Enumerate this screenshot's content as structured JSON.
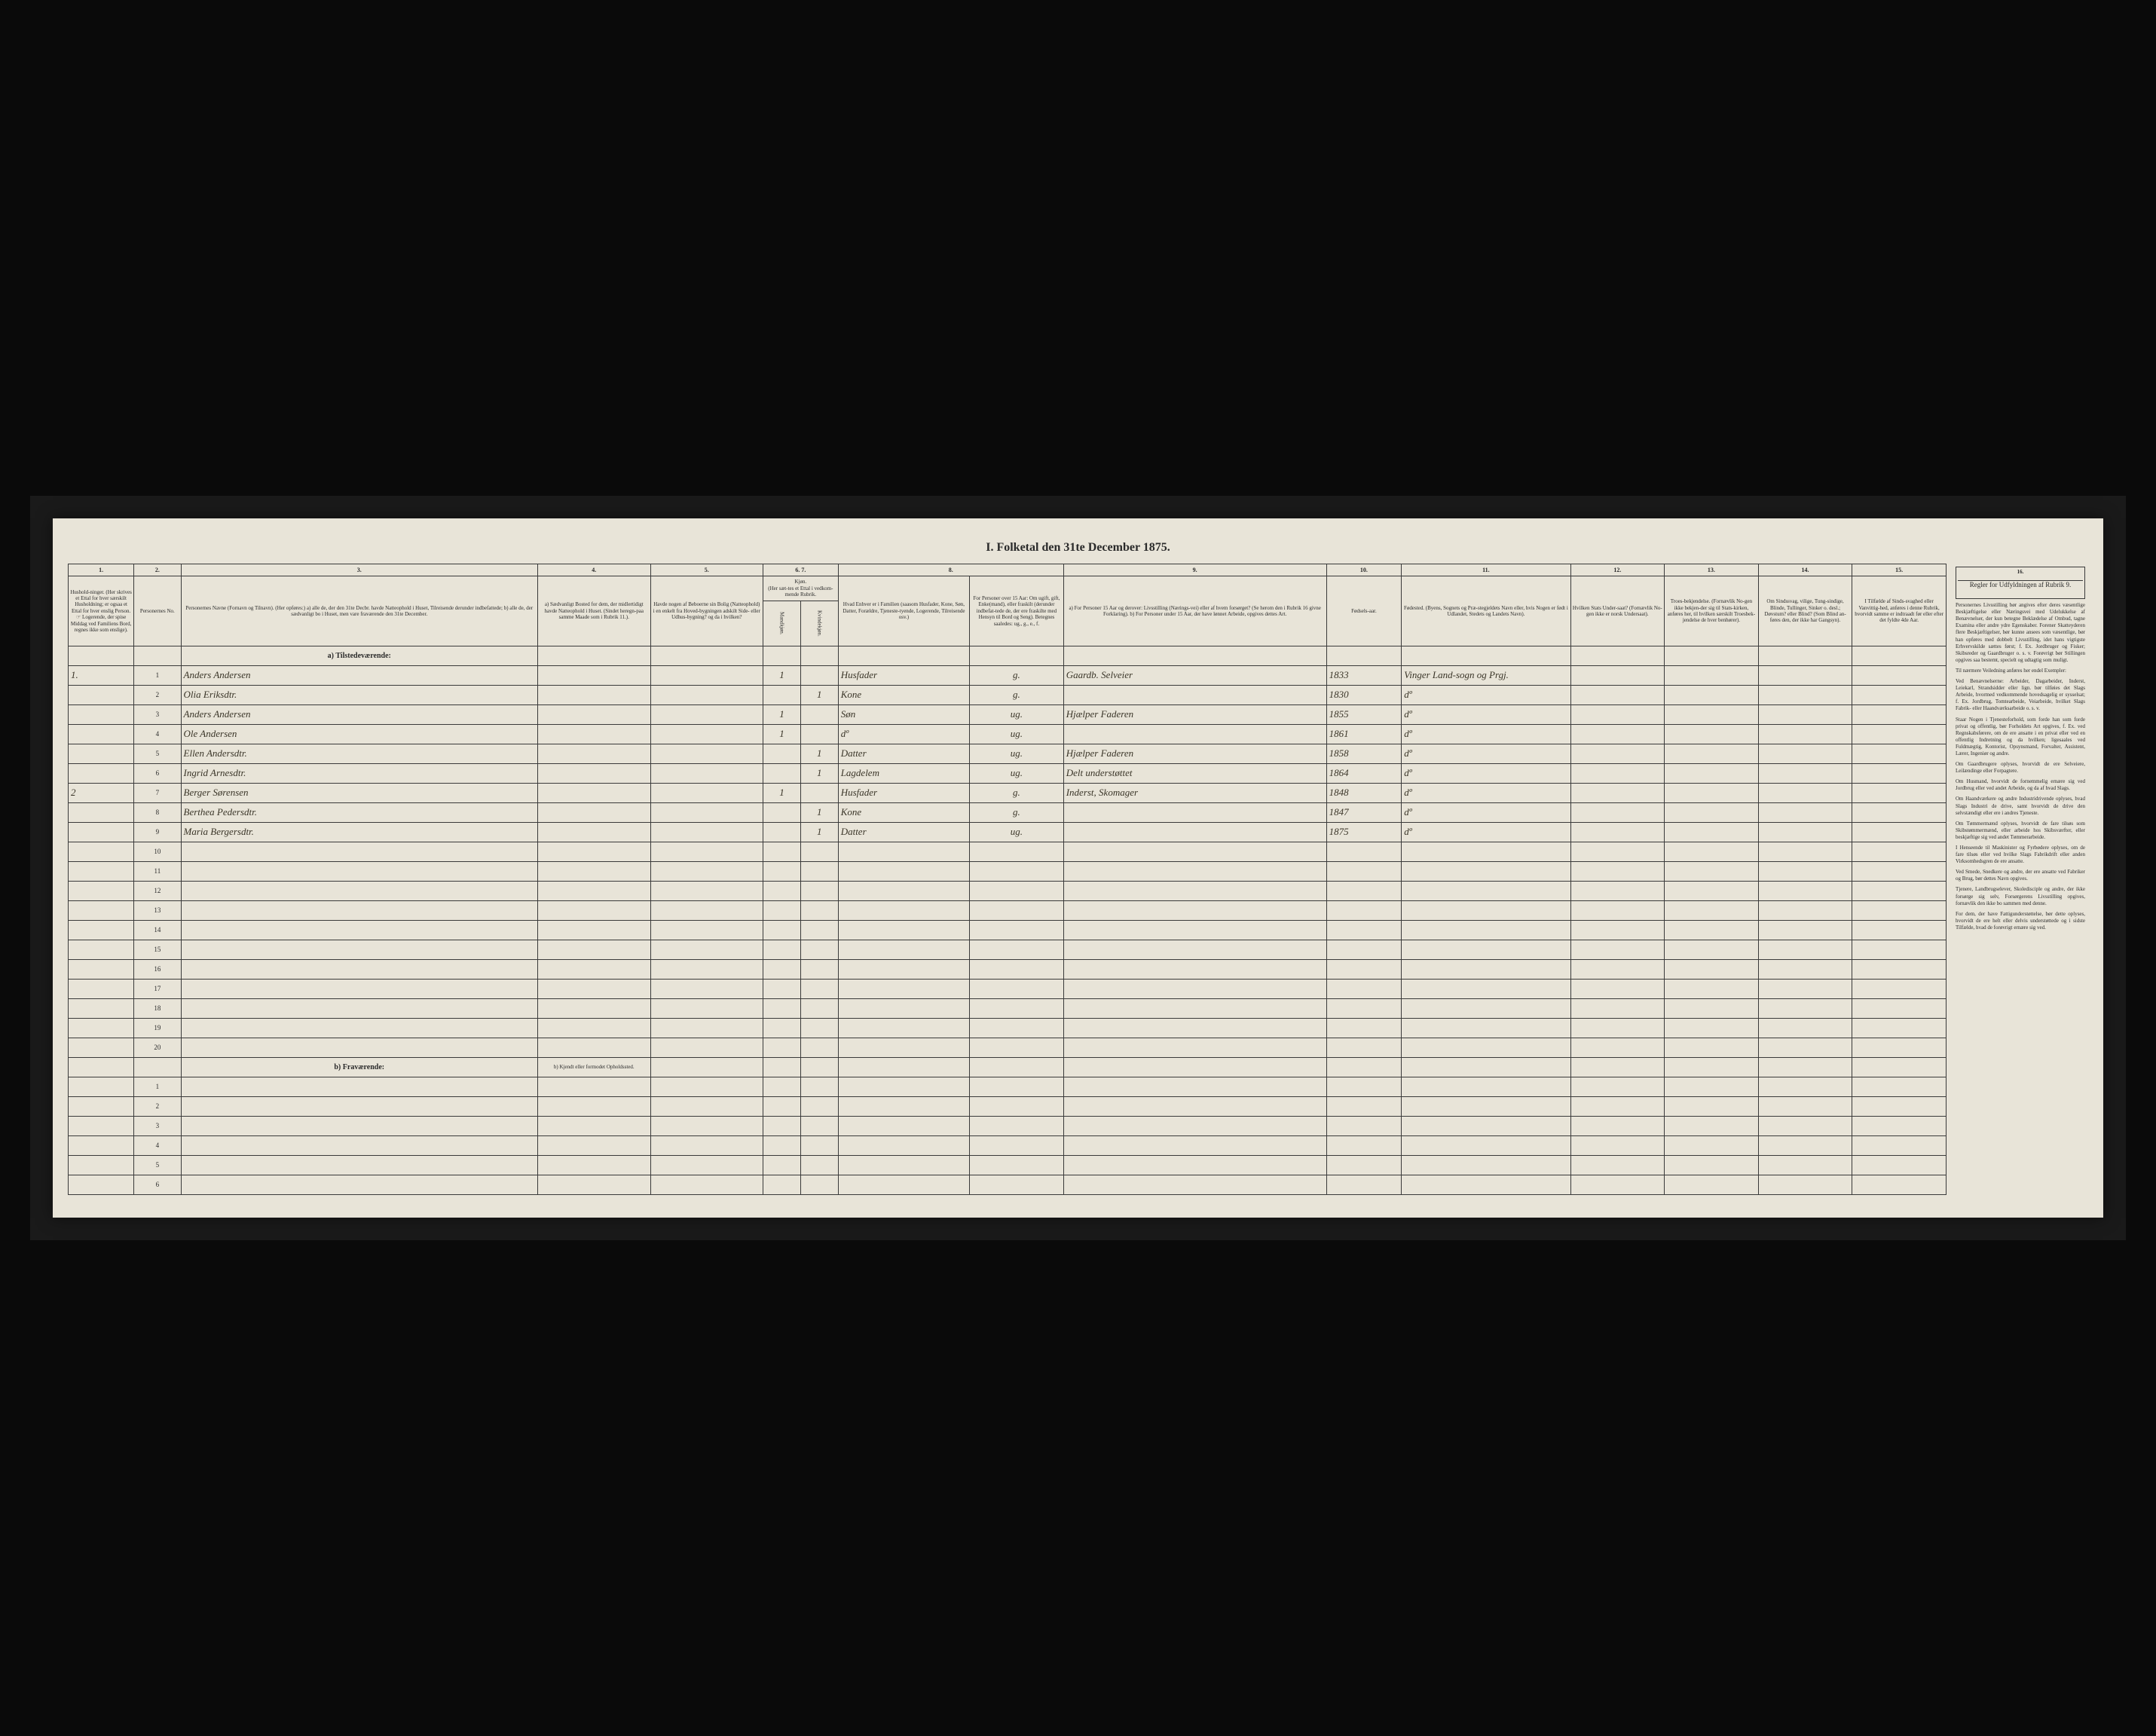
{
  "title": "I. Folketal den 31te December 1875.",
  "columnNumbers": [
    "1.",
    "2.",
    "3.",
    "4.",
    "5.",
    "6.",
    "7.",
    "8.",
    "9.",
    "10.",
    "11.",
    "12.",
    "13.",
    "14.",
    "15.",
    "16."
  ],
  "headers": {
    "col1": "Hushold-ninger.\n(Her skrives et Ettal for hver særskilt Husholdning; er ogsaa et Ettal for hver enslig Person.\n☞ Logerende, der spise Middag ved Familiens Bord, regnes ikke som enslige).",
    "col2": "Personernes No.",
    "col3": "Personernes Navne (Fornavn og Tilnavn).\n(Her opføres:)\na) alle de, der den 31te Decbr. havde Natteophold i Huset, Tilreisende derunder indbefattede;\nb) alle de, der sædvanligt bo i Huset, men vare fraværende den 31te December.",
    "col4": "a) Sædvanligt Bosted for dem, der midlertidigt havde Natteophold i Huset.\n(Sindet heregn-paa samme Maade som i Rubrik 11.).",
    "col5": "Havde nogen af Beboerne sin Bolig (Natteophold) i en enkelt fra Hoved-bygningen adskilt Side- eller Udhus-bygning? og da i hvilken?",
    "col6": "Kjøn. Mandkjøn.",
    "col7": "Kjøn. Kvindekjøn.",
    "col8a": "Hvad Enhver er i Familien (saasom Husfader, Kone, Søn, Datter, Forældre, Tjeneste-tyende, Logerende, Tilreisende osv.)",
    "col8b": "For Personer over 15 Aar: Om ugift, gift, Enke(mand), eller fraskilt (derunder indbefat-tede de, der ere fraskilte med Hensyn til Bord og Seng).\nBetegnes saaledes: ug., g., e., f.",
    "col9": "a) For Personer 15 Aar og derover: Livsstilling (Nærings-vei) eller af hvem forsørget? (Se herom den i Rubrik 16 givne Forklaring).\nb) For Personer under 15 Aar, der have lønnet Arbeide, opgives dettes Art.",
    "col10": "Fødsels-aar.",
    "col11": "Fødested.\n(Byens, Sognets og Præ-stegjeldets Navn eller, hvis Nogen er født i Udlandet, Stedets og Landets Navn).",
    "col12": "Hvilken Stats Under-saat?\n(Fornævlik No-gen ikke er norsk Undersaat).",
    "col13": "Troes-bekjendelse.\n(Fornævlik No-gen ikke bekjen-der sig til Stats-kirken, anføres her, til hvilken særskilt Troesbek-jendelse de hver benhører).",
    "col14": "Om Sindssvag, vilige, Tung-sindige, Blinde, Tullinger, Sinker o. desl.; Døvstum? eller Blind? (Som Blind an-føres den, der ikke har Gangsyn).",
    "col15": "I Tilfælde af Sinds-svaghed eller Vanvittig-hed, anføres i denne Rubrik, hvorvidt samme er indtraadt før eller efter det fyldte 4de Aar.",
    "col16title": "Regler for Udfyldningen\naf\nRubrik 9."
  },
  "sectionA": "a) Tilstedeværende:",
  "sectionBLabel": "b) Fraværende:",
  "sectionBCol4": "b) Kjendt eller formodet Opholdssted.",
  "rows": [
    {
      "hh": "1.",
      "num": "1",
      "name": "Anders Andersen",
      "col4": "",
      "col5": "",
      "sex": "1",
      "col7": "",
      "rel": "Husfader",
      "civ": "g.",
      "occ": "Gaardb. Selveier",
      "year": "1833",
      "place": "Vinger Land-sogn og Prgj.",
      "c12": "",
      "c13": "",
      "c14": "",
      "c15": ""
    },
    {
      "hh": "",
      "num": "2",
      "name": "Olia Eriksdtr.",
      "col4": "",
      "col5": "",
      "sex": "",
      "col7": "1",
      "rel": "Kone",
      "civ": "g.",
      "occ": "",
      "year": "1830",
      "place": "dº",
      "c12": "",
      "c13": "",
      "c14": "",
      "c15": ""
    },
    {
      "hh": "",
      "num": "3",
      "name": "Anders Andersen",
      "col4": "",
      "col5": "",
      "sex": "1",
      "col7": "",
      "rel": "Søn",
      "civ": "ug.",
      "occ": "Hjælper Faderen",
      "year": "1855",
      "place": "dº",
      "c12": "",
      "c13": "",
      "c14": "",
      "c15": ""
    },
    {
      "hh": "",
      "num": "4",
      "name": "Ole Andersen",
      "col4": "",
      "col5": "",
      "sex": "1",
      "col7": "",
      "rel": "dº",
      "civ": "ug.",
      "occ": "",
      "year": "1861",
      "place": "dº",
      "c12": "",
      "c13": "",
      "c14": "",
      "c15": ""
    },
    {
      "hh": "",
      "num": "5",
      "name": "Ellen Andersdtr.",
      "col4": "",
      "col5": "",
      "sex": "",
      "col7": "1",
      "rel": "Datter",
      "civ": "ug.",
      "occ": "Hjælper Faderen",
      "year": "1858",
      "place": "dº",
      "c12": "",
      "c13": "",
      "c14": "",
      "c15": ""
    },
    {
      "hh": "",
      "num": "6",
      "name": "Ingrid Arnesdtr.",
      "col4": "",
      "col5": "",
      "sex": "",
      "col7": "1",
      "rel": "Lagdelem",
      "civ": "ug.",
      "occ": "Delt understøttet",
      "year": "1864",
      "place": "dº",
      "c12": "",
      "c13": "",
      "c14": "",
      "c15": ""
    },
    {
      "hh": "2",
      "num": "7",
      "name": "Berger Sørensen",
      "col4": "",
      "col5": "",
      "sex": "1",
      "col7": "",
      "rel": "Husfader",
      "civ": "g.",
      "occ": "Inderst, Skomager",
      "year": "1848",
      "place": "dº",
      "c12": "",
      "c13": "",
      "c14": "",
      "c15": ""
    },
    {
      "hh": "",
      "num": "8",
      "name": "Berthea Pedersdtr.",
      "col4": "",
      "col5": "",
      "sex": "",
      "col7": "1",
      "rel": "Kone",
      "civ": "g.",
      "occ": "",
      "year": "1847",
      "place": "dº",
      "c12": "",
      "c13": "",
      "c14": "",
      "c15": ""
    },
    {
      "hh": "",
      "num": "9",
      "name": "Maria Bergersdtr.",
      "col4": "",
      "col5": "",
      "sex": "",
      "col7": "1",
      "rel": "Datter",
      "civ": "ug.",
      "occ": "",
      "year": "1875",
      "place": "dº",
      "c12": "",
      "c13": "",
      "c14": "",
      "c15": ""
    }
  ],
  "emptyRowsA": [
    "10",
    "11",
    "12",
    "13",
    "14",
    "15",
    "16",
    "17",
    "18",
    "19",
    "20"
  ],
  "emptyRowsB": [
    "1",
    "2",
    "3",
    "4",
    "5",
    "6"
  ],
  "instructions": {
    "p1": "Personernes Livsstilling bør angives efter deres væsentlige Beskjæftigelse eller Næringsvei med Udelukkelse af Benævnelser, der kun betegne Beklædelse af Ombud, tagne Examina eller andre ydre Egenskaber. Forener Skatteyderen flere Beskjæftigelser, bør kunne ansees som væsentlige, bør han opføres med dobbelt Livsstilling, idet hans vigtigste Erhvervskilde sættes først; f. Ex. Jordbruger og Fisker; Skibsreder og Gaardbruger o. s. v. Forøvrigt bør Stillingen opgives saa bestemt, specielt og udtagtig som muligt.",
    "p2": "Til nærmere Veiledning anføres her endel Exempler:",
    "p3": "Ved Benævnelserne: Arbeider, Dagarbeider, Inderst, Leiekarl, Strandsidder eller lign. bør tilføies det Slags Arbeide, hvormed vedkommende hovedsagelig er sysselsat; f. Ex. Jordbrug, Tomtearbeide, Veiarbeide, hvilket Slags Fabrik- eller Haandværksarbeide o. s. v.",
    "p4": "Staar Nogen i Tjenesteforhold, som forde han som forde privat og offentlig, bør Forholdets Art opgives, f. Ex. ved Regnskabsførere, om de ere ansatte i en privat eller ved en offentlig Indretning og da hvilken; ligesaales ved Fuldmægtig, Kontorist, Opsynsmand, Forvalter, Assistent, Lærer, Ingeniør og andre.",
    "p5": "Om Gaardbrugere oplyses, hvorvidt de ere Selveiere, Leilændinge eller Forpagtere.",
    "p6": "Om Husmand, hvorvidt de fornemmelig ernære sig ved Jordbrug eller ved andet Arbeide, og da af hvad Slags.",
    "p7": "Om Haandværkere og andre Industridrivende oplyses, hvad Slags Industri de drive, samt hvorvidt de drive den selvstændigt eller ere i andres Tjeneste.",
    "p8": "Om Tømmermænd oplyses, hvorvidt de fare tilsøs som Skibstømmermænd, eller arbeide hos Skibsværfter, eller beskjæftige sig ved andet Tømmerarbeide.",
    "p9": "I Henseende til Maskinister og Fyrbødere oplyses, om de fare tilsøs eller ved hvilke Slags Fabrikdrift eller anden Virksomhedsgren de ere ansatte.",
    "p10": "Ved Smede, Snedkere og andre, der ere ansatte ved Fabriker og Brug, bør dettes Navn opgives.",
    "p11": "Tjenere, Landbrugselever, Skoledisciple og andre, der ikke forsørge sig selv, Forsørgerens Livsstilling opgives, fornævlik den ikke bo sammen med denne.",
    "p12": "For dem, der have Fattigunderstøttelse, bør dette oplyses, hvorvidt de ere helt eller delvis understøttede og i sidste Tilfælde, hvad de forøvrigt ernære sig ved."
  }
}
